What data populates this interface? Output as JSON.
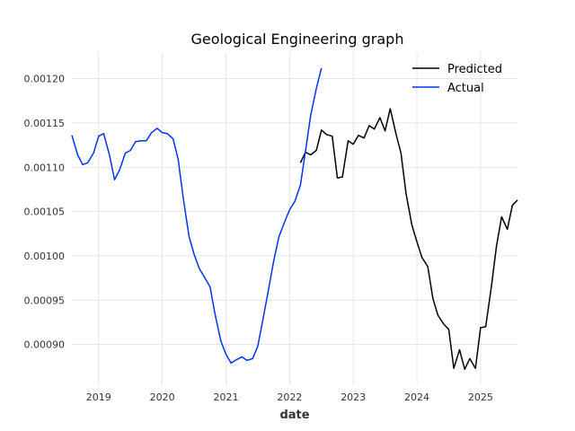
{
  "chart_data": {
    "type": "line",
    "title": "Geological Engineering graph",
    "xlabel": "date",
    "ylabel": "",
    "xlim": [
      2018.58,
      2025.58
    ],
    "ylim": [
      0.000855,
      0.00123
    ],
    "x_ticks": [
      2019,
      2020,
      2021,
      2022,
      2023,
      2024,
      2025
    ],
    "x_tick_labels": [
      "2019",
      "2020",
      "2021",
      "2022",
      "2023",
      "2024",
      "2025"
    ],
    "y_ticks": [
      0.0009,
      0.00095,
      0.001,
      0.00105,
      0.0011,
      0.00115,
      0.0012
    ],
    "y_tick_labels": [
      "0.00090",
      "0.00095",
      "0.00100",
      "0.00105",
      "0.00110",
      "0.00115",
      "0.00120"
    ],
    "grid": true,
    "legend": "top-right",
    "series": [
      {
        "name": "Predicted",
        "color": "#000000",
        "x": [
          2022.17,
          2022.25,
          2022.33,
          2022.42,
          2022.5,
          2022.58,
          2022.67,
          2022.75,
          2022.83,
          2022.92,
          2023.0,
          2023.08,
          2023.17,
          2023.25,
          2023.33,
          2023.42,
          2023.5,
          2023.58,
          2023.67,
          2023.75,
          2023.83,
          2023.92,
          2024.0,
          2024.08,
          2024.17,
          2024.25,
          2024.33,
          2024.42,
          2024.5,
          2024.58,
          2024.67,
          2024.75,
          2024.83,
          2024.92,
          2025.0,
          2025.08,
          2025.17,
          2025.25,
          2025.33,
          2025.42,
          2025.5,
          2025.58
        ],
        "y": [
          0.001105,
          0.001117,
          0.001114,
          0.001119,
          0.001142,
          0.001137,
          0.001135,
          0.001088,
          0.001089,
          0.00113,
          0.001126,
          0.001136,
          0.001133,
          0.001147,
          0.001143,
          0.001156,
          0.001141,
          0.001166,
          0.001138,
          0.001116,
          0.00107,
          0.001035,
          0.001016,
          0.000998,
          0.000988,
          0.000952,
          0.000933,
          0.000923,
          0.000917,
          0.000873,
          0.000894,
          0.000872,
          0.000884,
          0.000873,
          0.000919,
          0.00092,
          0.000965,
          0.001011,
          0.001044,
          0.00103,
          0.001057,
          0.001063
        ]
      },
      {
        "name": "Actual",
        "color": "#0033ee",
        "x": [
          2018.58,
          2018.67,
          2018.75,
          2018.83,
          2018.92,
          2019.0,
          2019.08,
          2019.17,
          2019.25,
          2019.33,
          2019.42,
          2019.5,
          2019.58,
          2019.67,
          2019.75,
          2019.83,
          2019.92,
          2020.0,
          2020.08,
          2020.17,
          2020.25,
          2020.33,
          2020.42,
          2020.5,
          2020.58,
          2020.67,
          2020.75,
          2020.83,
          2020.92,
          2021.0,
          2021.08,
          2021.17,
          2021.25,
          2021.33,
          2021.42,
          2021.5,
          2021.58,
          2021.67,
          2021.75,
          2021.83,
          2021.92,
          2022.0,
          2022.08,
          2022.17,
          2022.25,
          2022.33,
          2022.42,
          2022.5
        ],
        "y": [
          0.001136,
          0.001114,
          0.001103,
          0.001105,
          0.001116,
          0.001135,
          0.001138,
          0.001114,
          0.001086,
          0.001097,
          0.001116,
          0.001119,
          0.001129,
          0.00113,
          0.00113,
          0.001139,
          0.001144,
          0.001139,
          0.001138,
          0.001132,
          0.001109,
          0.001065,
          0.001022,
          0.001002,
          0.000986,
          0.000975,
          0.000965,
          0.000934,
          0.000904,
          0.000889,
          0.000879,
          0.000883,
          0.000886,
          0.000882,
          0.000884,
          0.000898,
          0.000928,
          0.000962,
          0.000994,
          0.001021,
          0.001038,
          0.001052,
          0.001061,
          0.00108,
          0.001118,
          0.001158,
          0.001189,
          0.001212
        ]
      }
    ]
  }
}
